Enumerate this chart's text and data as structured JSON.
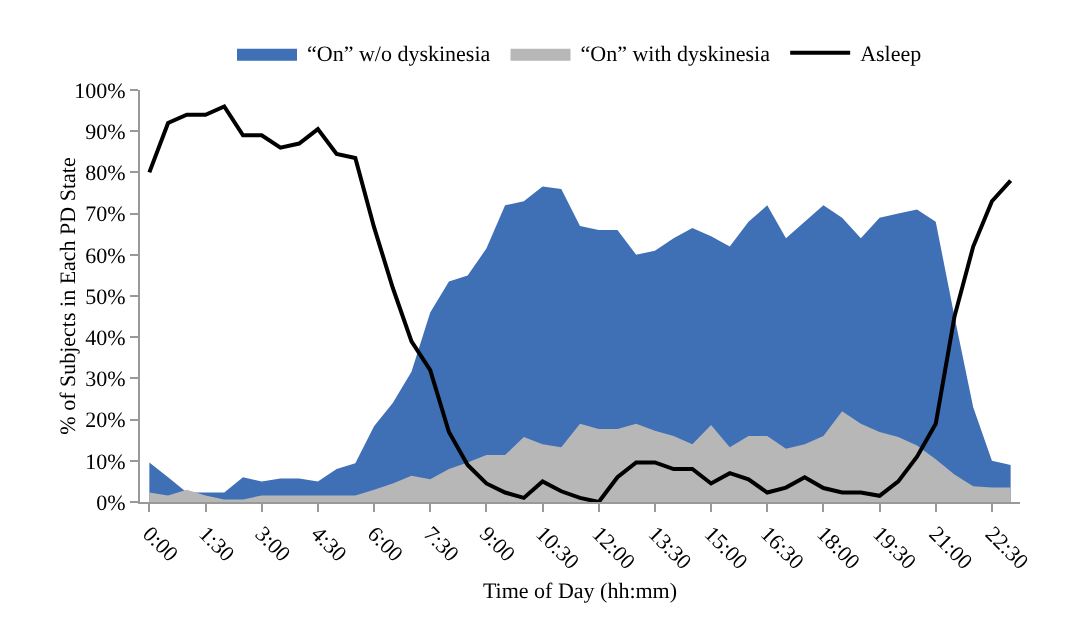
{
  "chart_data": {
    "type": "area",
    "xlabel": "Time of Day (hh:mm)",
    "ylabel": "% of Subjects in Each PD State",
    "categories": [
      "0:00",
      null,
      null,
      "1:30",
      null,
      null,
      "3:00",
      null,
      null,
      "4:30",
      null,
      null,
      "6:00",
      null,
      null,
      "7:30",
      null,
      null,
      "9:00",
      null,
      null,
      "10:30",
      null,
      null,
      "12:00",
      null,
      null,
      "13:30",
      null,
      null,
      "15:00",
      null,
      null,
      "16:30",
      null,
      null,
      "18:00",
      null,
      null,
      "19:30",
      null,
      null,
      "21:00",
      null,
      null,
      "22:30",
      null
    ],
    "series": [
      {
        "name": "“On” w/o dyskinesia",
        "color": "#3f6fb5",
        "values": [
          9.6,
          6,
          2.3,
          2.3,
          2.3,
          6,
          5,
          5.7,
          5.7,
          5,
          8,
          9.4,
          18.4,
          24,
          31.6,
          46,
          53.5,
          55,
          61.5,
          72,
          73,
          76.6,
          76,
          67,
          66,
          66,
          60,
          61,
          64,
          66.5,
          64.5,
          62,
          68,
          72,
          64,
          68,
          72,
          69,
          64,
          69,
          70,
          71,
          68,
          45,
          23,
          10,
          9
        ]
      },
      {
        "name": "“On” with dyskinesia",
        "color": "#b7b7b7",
        "values": [
          2.3,
          1.6,
          3,
          1.6,
          0.6,
          0.6,
          1.6,
          1.6,
          1.6,
          1.6,
          1.6,
          1.6,
          3,
          4.5,
          6.4,
          5.5,
          8,
          9.6,
          11.4,
          11.4,
          15.8,
          14,
          13.3,
          19,
          17.7,
          17.7,
          19,
          17.3,
          16,
          14,
          18.7,
          13.3,
          16,
          16,
          12.9,
          14,
          16,
          22,
          19,
          17,
          15.8,
          13.7,
          10.4,
          6.7,
          3.8,
          3.5,
          3.5
        ]
      },
      {
        "name": "Asleep",
        "type": "line",
        "color": "#000000",
        "values": [
          80,
          92,
          94,
          94,
          96,
          89,
          89,
          86,
          87,
          90.5,
          84.5,
          83.5,
          66.7,
          52,
          39,
          32,
          17,
          9,
          4.5,
          2.3,
          1,
          5,
          2.6,
          1,
          0,
          6,
          9.6,
          9.6,
          8,
          8,
          4.5,
          7,
          5.5,
          2.3,
          3.5,
          6,
          3.4,
          2.3,
          2.3,
          1.5,
          5,
          11,
          19,
          45,
          62,
          73,
          78
        ]
      }
    ],
    "ylim": [
      0,
      100
    ],
    "yticks": [
      {
        "value": 0,
        "label": "0%"
      },
      {
        "value": 10,
        "label": "10%"
      },
      {
        "value": 20,
        "label": "20%"
      },
      {
        "value": 30,
        "label": "30%"
      },
      {
        "value": 40,
        "label": "40%"
      },
      {
        "value": 50,
        "label": "50%"
      },
      {
        "value": 60,
        "label": "60%"
      },
      {
        "value": 70,
        "label": "70%"
      },
      {
        "value": 80,
        "label": "80%"
      },
      {
        "value": 90,
        "label": "90%"
      },
      {
        "value": 100,
        "label": "100%"
      }
    ],
    "legend": "top",
    "grid": false
  }
}
